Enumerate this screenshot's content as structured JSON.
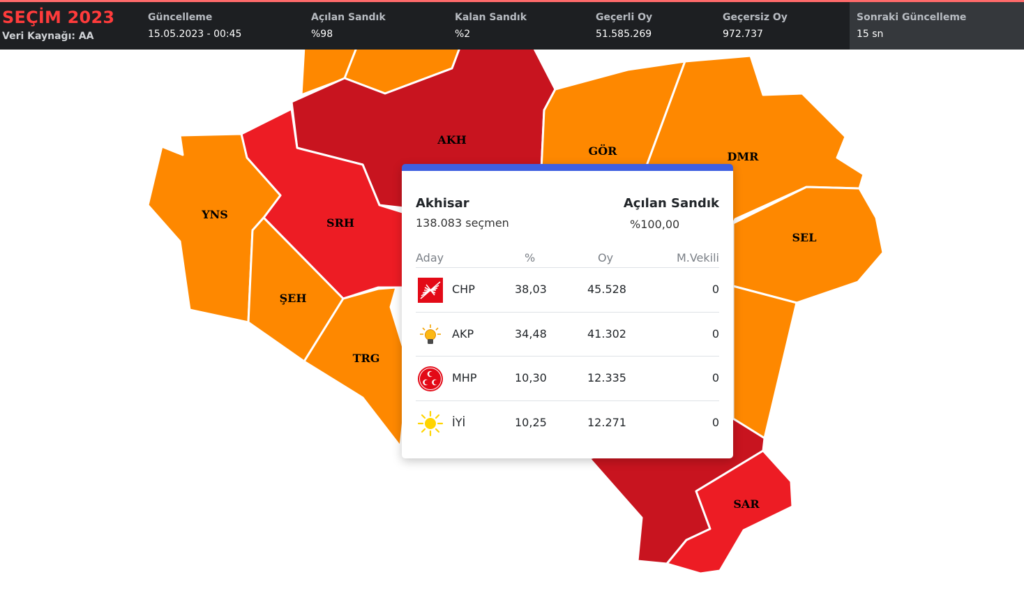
{
  "header": {
    "title": "SEÇİM 2023",
    "source": "Veri Kaynağı: AA",
    "stats": [
      {
        "label": "Güncelleme",
        "value": "15.05.2023 - 00:45"
      },
      {
        "label": "Açılan Sandık",
        "value": "%98"
      },
      {
        "label": "Kalan Sandık",
        "value": "%2"
      },
      {
        "label": "Geçerli Oy",
        "value": "51.585.269"
      },
      {
        "label": "Geçersiz Oy",
        "value": "972.737"
      }
    ],
    "next_update": {
      "label": "Sonraki Güncelleme",
      "value": "15 sn"
    }
  },
  "map": {
    "colors": {
      "chp": "#ed1c24",
      "chp_dark": "#c8141f",
      "akp": "#fe8800"
    },
    "labels": {
      "akh": "AKH",
      "gor": "GÖR",
      "dmr": "DMR",
      "sel": "SEL",
      "yns": "YNS",
      "srh": "SRH",
      "seh": "ŞEH",
      "trg": "TRG",
      "sar": "SAR"
    }
  },
  "tooltip": {
    "accent": "#3f5fe0",
    "district": "Akhisar",
    "voters": "138.083 seçmen",
    "opened_label": "Açılan Sandık",
    "opened_value": "%100,00",
    "columns": {
      "candidate": "Aday",
      "percent": "%",
      "votes": "Oy",
      "deputies": "M.Vekili"
    },
    "rows": [
      {
        "party": "CHP",
        "percent": "38,03",
        "votes": "45.528",
        "deputies": "0",
        "icon": "chp-logo-icon"
      },
      {
        "party": "AKP",
        "percent": "34,48",
        "votes": "41.302",
        "deputies": "0",
        "icon": "akp-logo-icon"
      },
      {
        "party": "MHP",
        "percent": "10,30",
        "votes": "12.335",
        "deputies": "0",
        "icon": "mhp-logo-icon"
      },
      {
        "party": "İYİ",
        "percent": "10,25",
        "votes": "12.271",
        "deputies": "0",
        "icon": "iyi-logo-icon"
      }
    ]
  }
}
